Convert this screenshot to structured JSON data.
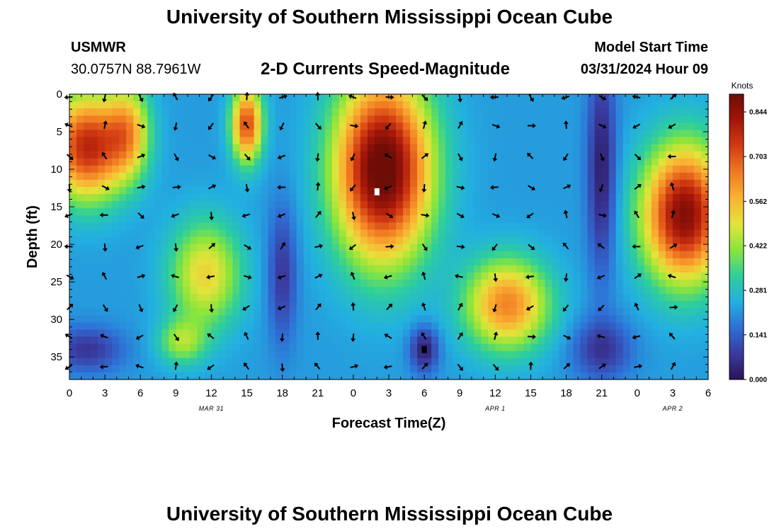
{
  "header": {
    "title": "University of Southern Mississippi Ocean Cube",
    "station": "USMWR",
    "coords": "30.0757N  88.7961W",
    "subtitle": "2-D Currents Speed-Magnitude",
    "model_label": "Model Start Time",
    "model_time": "03/31/2024 Hour 09"
  },
  "footer": {
    "title": "University of Southern Mississippi Ocean Cube"
  },
  "chart_data": {
    "type": "heatmap",
    "title": "2-D Currents Speed-Magnitude",
    "xlabel": "Forecast Time(Z)",
    "ylabel": "Depth (ft)",
    "xlim": [
      0,
      54
    ],
    "ylim": [
      38,
      0
    ],
    "x_ticks": [
      0,
      3,
      6,
      9,
      12,
      15,
      18,
      21,
      24,
      27,
      30,
      33,
      36,
      39,
      42,
      45,
      48,
      51,
      54
    ],
    "x_tick_labels": [
      "0",
      "3",
      "6",
      "9",
      "12",
      "15",
      "18",
      "21",
      "0",
      "3",
      "6",
      "9",
      "12",
      "15",
      "18",
      "21",
      "0",
      "3",
      "6"
    ],
    "date_labels": [
      {
        "label": "MAR 31",
        "at": 12
      },
      {
        "label": "APR 1",
        "at": 36
      },
      {
        "label": "APR 2",
        "at": 51
      }
    ],
    "y_ticks": [
      0,
      5,
      10,
      15,
      20,
      25,
      30,
      35
    ],
    "y_tick_labels": [
      "0",
      "5",
      "10",
      "15",
      "20",
      "25",
      "30",
      "35"
    ],
    "colorbar": {
      "label": "Knots",
      "min": 0.0,
      "max": 0.9,
      "ticks": [
        0.0,
        0.141,
        0.281,
        0.422,
        0.562,
        0.703,
        0.844
      ],
      "tick_labels": [
        "0.000",
        "0.141",
        "0.281",
        "0.422",
        "0.562",
        "0.703",
        "0.844"
      ],
      "colors": [
        "#2b1457",
        "#3a3a9e",
        "#2f6fd6",
        "#22b0e0",
        "#2ecf9a",
        "#8ae53b",
        "#e4e33a",
        "#f9b233",
        "#f07a22",
        "#d23c13",
        "#a31509",
        "#6e0d07"
      ]
    },
    "speed_blobs": [
      {
        "x": 1.5,
        "y": 7,
        "sx": 3.2,
        "sy": 7,
        "v": 0.56
      },
      {
        "x": 5,
        "y": 5,
        "sx": 1.8,
        "sy": 6,
        "v": 0.3
      },
      {
        "x": 15,
        "y": 4,
        "sx": 1.3,
        "sy": 5,
        "v": 0.5
      },
      {
        "x": 11.5,
        "y": 24,
        "sx": 3,
        "sy": 7,
        "v": 0.3
      },
      {
        "x": 9.5,
        "y": 33,
        "sx": 2,
        "sy": 3,
        "v": 0.2
      },
      {
        "x": 26.5,
        "y": 10,
        "sx": 4,
        "sy": 12,
        "v": 0.72
      },
      {
        "x": 37,
        "y": 28,
        "sx": 3.5,
        "sy": 6,
        "v": 0.42
      },
      {
        "x": 52,
        "y": 16,
        "sx": 3.5,
        "sy": 9,
        "v": 0.65
      },
      {
        "x": 1.5,
        "y": 34,
        "sx": 3,
        "sy": 3,
        "v": -0.15
      },
      {
        "x": 18,
        "y": 24,
        "sx": 1.2,
        "sy": 9,
        "v": -0.15
      },
      {
        "x": 30,
        "y": 34,
        "sx": 1.2,
        "sy": 3,
        "v": -0.2
      },
      {
        "x": 45,
        "y": 34,
        "sx": 2.5,
        "sy": 4,
        "v": -0.15
      },
      {
        "x": 45,
        "y": 10,
        "sx": 1.2,
        "sy": 14,
        "v": -0.2
      }
    ],
    "speed_base": 0.22,
    "vector_times": [
      0,
      3,
      6,
      9,
      12,
      15,
      18,
      21,
      24,
      27,
      30,
      33,
      36,
      39,
      42,
      45,
      48,
      51
    ],
    "vector_depths": [
      0.4,
      4.2,
      8.3,
      12.4,
      16.1,
      20.3,
      24.3,
      28.4,
      32.3,
      36.3
    ],
    "vector_angle_seed": 7,
    "markers": [
      {
        "time": 26,
        "depth": 13,
        "color": "#ffffff"
      },
      {
        "time": 30,
        "depth": 34,
        "color": "#000000"
      }
    ]
  }
}
